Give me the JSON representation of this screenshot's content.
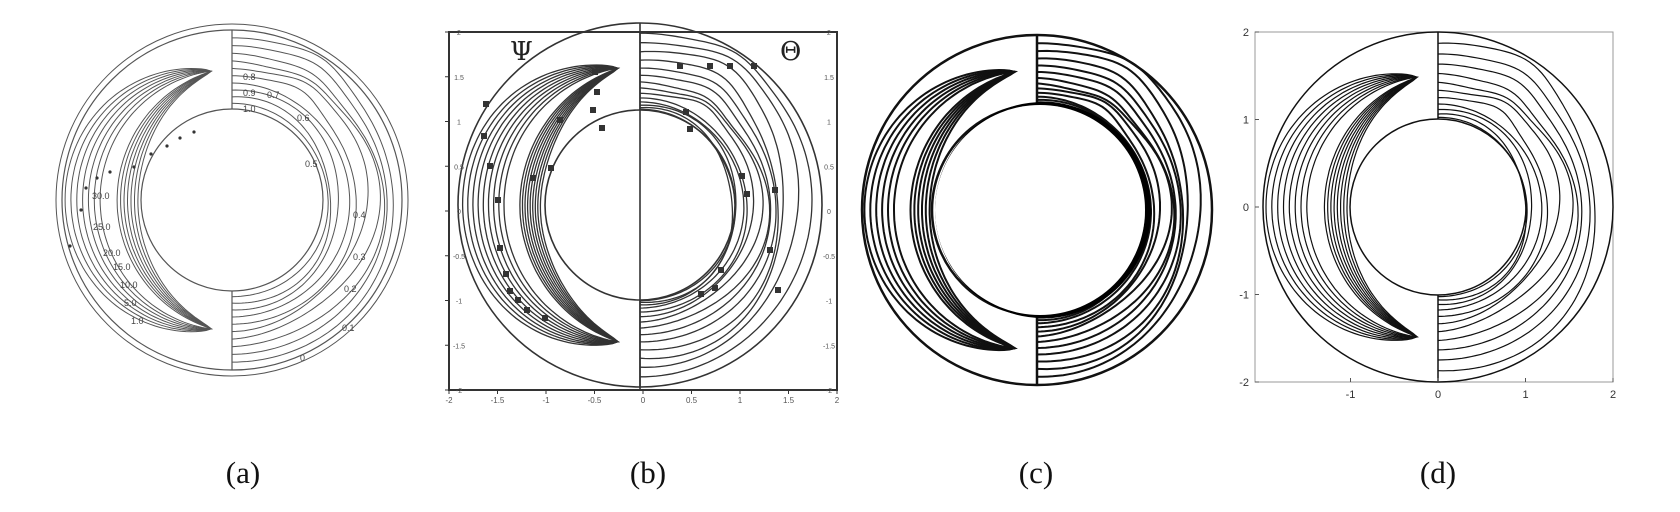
{
  "panels": [
    {
      "caption": "(a)",
      "psi_labels": [
        "30.0",
        "25.0",
        "20.0",
        "15.0",
        "10.0",
        "5.0",
        "1.0"
      ],
      "theta_labels": [
        "0.8",
        "0.9",
        "1.0",
        "0.7",
        "0.6",
        "0.5",
        "0.4",
        "0.3",
        "0.2",
        "0.1",
        "0"
      ]
    },
    {
      "caption": "(b)",
      "left_symbol": "Ψ",
      "right_symbol": "Θ",
      "x_ticks": [
        "-2",
        "-1.5",
        "-1",
        "-0.5",
        "0",
        "0.5",
        "1",
        "1.5",
        "2"
      ],
      "y_ticks": [
        "2",
        "1.5",
        "1",
        "0.5",
        "0",
        "-0.5",
        "-1",
        "-1.5",
        "-2"
      ]
    },
    {
      "caption": "(c)"
    },
    {
      "caption": "(d)",
      "x_ticks": [
        "-1",
        "0",
        "1",
        "2"
      ],
      "y_ticks": [
        "2",
        "1",
        "0",
        "-1",
        "-2"
      ]
    }
  ]
}
